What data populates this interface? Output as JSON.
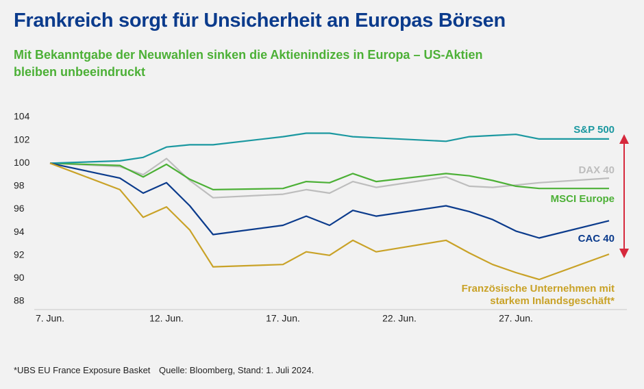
{
  "chart_data": {
    "type": "line",
    "title": "Frankreich sorgt für Unsicherheit an Europas Börsen",
    "subtitle": "Mit Bekanntgabe der Neuwahlen sinken die Aktienindizes in Europa – US-Aktien bleiben unbeeindruckt",
    "x": [
      "7. Jun.",
      "10. Jun.",
      "11. Jun.",
      "12. Jun.",
      "13. Jun.",
      "14. Jun.",
      "17. Jun.",
      "18. Jun.",
      "19. Jun.",
      "20. Jun.",
      "21. Jun.",
      "24. Jun.",
      "25. Jun.",
      "26. Jun.",
      "27. Jun.",
      "28. Jun.",
      "1. Jul."
    ],
    "xlim": [
      "7. Jun.",
      "1. Jul."
    ],
    "xticks": [
      "7. Jun.",
      "12. Jun.",
      "17. Jun.",
      "22. Jun.",
      "27. Jun."
    ],
    "ylim": [
      88,
      104
    ],
    "yticks": [
      88,
      90,
      92,
      94,
      96,
      98,
      100,
      102,
      104
    ],
    "series": [
      {
        "name": "S&P 500",
        "color": "#1b98a0",
        "values": [
          100,
          100.2,
          100.5,
          101.4,
          101.6,
          101.6,
          102.3,
          102.6,
          102.6,
          102.3,
          102.2,
          101.9,
          102.3,
          102.4,
          102.5,
          102.1,
          102.1
        ]
      },
      {
        "name": "DAX 40",
        "color": "#bdbdbd",
        "values": [
          100,
          99.7,
          99.0,
          100.4,
          98.5,
          97.0,
          97.3,
          97.7,
          97.4,
          98.4,
          97.9,
          98.8,
          98.0,
          97.9,
          98.1,
          98.3,
          98.7
        ]
      },
      {
        "name": "MSCI Europe",
        "color": "#4cb036",
        "values": [
          100,
          99.8,
          98.8,
          99.9,
          98.6,
          97.7,
          97.8,
          98.4,
          98.3,
          99.1,
          98.4,
          99.1,
          98.9,
          98.5,
          98.0,
          97.8,
          97.8
        ]
      },
      {
        "name": "CAC 40",
        "color": "#0b3b8c",
        "values": [
          100,
          98.7,
          97.4,
          98.3,
          96.3,
          93.8,
          94.6,
          95.4,
          94.6,
          95.9,
          95.4,
          96.3,
          95.8,
          95.1,
          94.1,
          93.5,
          95.0
        ]
      },
      {
        "name": "Französische Unternehmen mit starkem Inlandsgeschäft*",
        "color": "#c9a227",
        "values": [
          100,
          97.7,
          95.3,
          96.2,
          94.2,
          91.0,
          91.2,
          92.3,
          92.0,
          93.3,
          92.3,
          93.3,
          92.2,
          91.2,
          90.5,
          89.9,
          92.1
        ]
      }
    ],
    "footnote": "*UBS EU France Exposure Basket",
    "source": "Quelle: Bloomberg, Stand: 1. Juli 2024."
  }
}
